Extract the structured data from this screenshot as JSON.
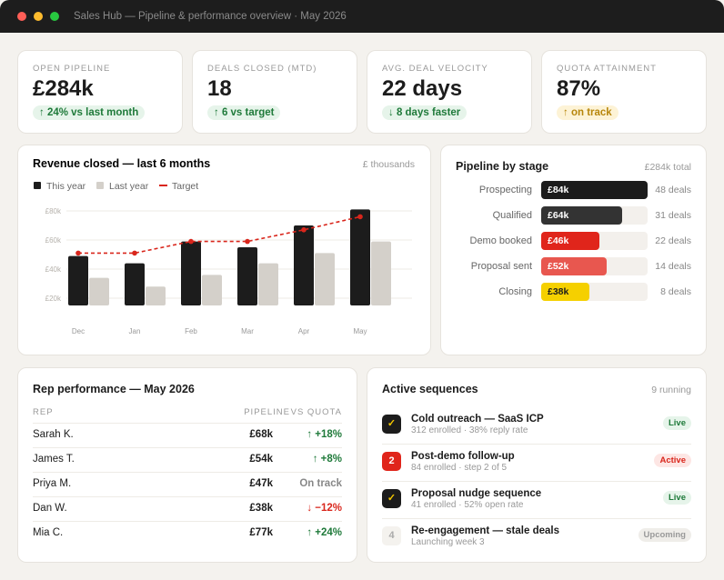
{
  "window_title": "Sales Hub — Pipeline & performance overview · May 2026",
  "kpis": [
    {
      "label": "OPEN PIPELINE",
      "value": "£284k",
      "delta": "↑ 24% vs last month"
    },
    {
      "label": "DEALS CLOSED (MTD)",
      "value": "18",
      "delta": "↑ 6 vs target"
    },
    {
      "label": "AVG. DEAL VELOCITY",
      "value": "22 days",
      "delta": "↓ 8 days faster"
    },
    {
      "label": "QUOTA ATTAINMENT",
      "value": "87%",
      "delta": "↑ on track"
    }
  ],
  "revenue_chart": {
    "type": "bar",
    "title": "Revenue closed — last 6 months",
    "unit_note": "£ thousands",
    "categories": [
      "Dec",
      "Jan",
      "Feb",
      "Mar",
      "Apr",
      "May"
    ],
    "series": [
      {
        "name": "This year",
        "color": "#1c1c1c",
        "values": [
          49,
          44,
          59,
          55,
          70,
          81
        ]
      },
      {
        "name": "Last year",
        "color": "#d4d0ca",
        "values": [
          34,
          28,
          36,
          44,
          51,
          59
        ]
      },
      {
        "name": "Target",
        "color": "#d9261c",
        "type": "line",
        "values": [
          51,
          51,
          59,
          59,
          67,
          76
        ]
      }
    ],
    "ylim": [
      15,
      85
    ],
    "yticks": [
      {
        "value": 20,
        "label": "£20k"
      },
      {
        "value": 40,
        "label": "£40k"
      },
      {
        "value": 60,
        "label": "£60k"
      },
      {
        "value": 80,
        "label": "£80k"
      }
    ],
    "grid": true
  },
  "pipeline": {
    "type": "bar",
    "title": "Pipeline by stage",
    "total": "£284k total",
    "categories": [
      "Prospecting",
      "Qualified",
      "Demo booked",
      "Proposal sent",
      "Closing"
    ],
    "values": [
      84,
      64,
      46,
      52,
      38
    ],
    "value_labels": [
      "£84k",
      "£64k",
      "£46k",
      "£52k",
      "£38k"
    ],
    "colors": [
      "#1c1c1c",
      "#333333",
      "#e0251b",
      "#e8574f",
      "#f5d000"
    ],
    "deal_counts": [
      "48 deals",
      "31 deals",
      "22 deals",
      "14 deals",
      "8 deals"
    ],
    "xlim": [
      0,
      84
    ]
  },
  "reps": {
    "title": "Rep performance — May 2026",
    "columns": [
      "REP",
      "PIPELINE",
      "VS QUOTA"
    ],
    "rows": [
      [
        "Sarah K.",
        "£68k",
        "↑ +18%"
      ],
      [
        "James T.",
        "£54k",
        "↑ +8%"
      ],
      [
        "Priya M.",
        "£47k",
        "On track"
      ],
      [
        "Dan W.",
        "£38k",
        "↓ −12%"
      ],
      [
        "Mia C.",
        "£77k",
        "↑ +24%"
      ]
    ]
  },
  "sequences": {
    "title": "Active sequences",
    "count": "9 running",
    "items": [
      {
        "icon": "✓",
        "name": "Cold outreach — SaaS ICP",
        "meta": "312 enrolled · 38% reply rate",
        "status": "Live"
      },
      {
        "icon": "2",
        "name": "Post-demo follow-up",
        "meta": "84 enrolled · step 2 of 5",
        "status": "Active"
      },
      {
        "icon": "✓",
        "name": "Proposal nudge sequence",
        "meta": "41 enrolled · 52% open rate",
        "status": "Live"
      },
      {
        "icon": "4",
        "name": "Re-engagement — stale deals",
        "meta": "Launching week 3",
        "status": "Upcoming"
      }
    ]
  }
}
